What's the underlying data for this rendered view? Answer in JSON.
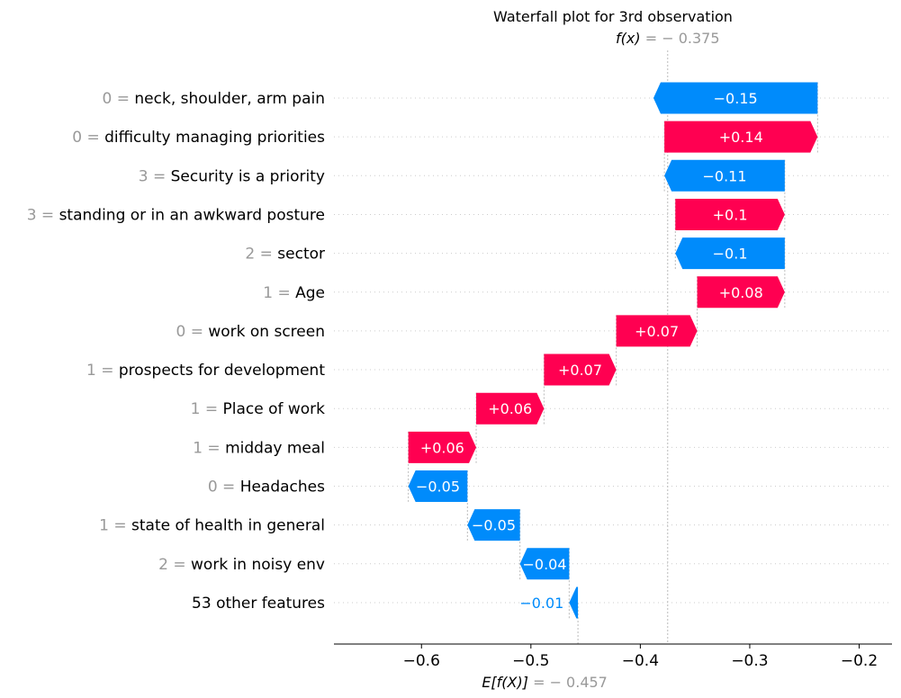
{
  "chart_data": {
    "type": "waterfall",
    "title": "Waterfall plot for 3rd observation",
    "fx_prefix": "f(x)",
    "fx_text": " = − 0.375",
    "fx": -0.375,
    "efx_prefix": "E[f(X)]",
    "efx_text": " = − 0.457",
    "efx": -0.457,
    "xlim": [
      -0.68,
      -0.17
    ],
    "xticks": [
      -0.6,
      -0.5,
      -0.4,
      -0.3,
      -0.2
    ],
    "xtick_labels": [
      "−0.6",
      "−0.5",
      "−0.4",
      "−0.3",
      "−0.2"
    ],
    "features": [
      {
        "value": "0",
        "name": "neck, shoulder, arm pain",
        "shap": -0.15,
        "label": "−0.15"
      },
      {
        "value": "0",
        "name": "difficulty managing priorities",
        "shap": 0.14,
        "label": "+0.14"
      },
      {
        "value": "3",
        "name": "Security is a priority",
        "shap": -0.11,
        "label": "−0.11"
      },
      {
        "value": "3",
        "name": "standing or in an awkward posture",
        "shap": 0.1,
        "label": "+0.1"
      },
      {
        "value": "2",
        "name": "sector",
        "shap": -0.1,
        "label": "−0.1"
      },
      {
        "value": "1",
        "name": "Age",
        "shap": 0.08,
        "label": "+0.08"
      },
      {
        "value": "0",
        "name": "work on screen",
        "shap": 0.074,
        "label": "+0.07"
      },
      {
        "value": "1",
        "name": "prospects for development",
        "shap": 0.066,
        "label": "+0.07"
      },
      {
        "value": "1",
        "name": "Place of work",
        "shap": 0.062,
        "label": "+0.06"
      },
      {
        "value": "1",
        "name": "midday meal",
        "shap": 0.062,
        "label": "+0.06"
      },
      {
        "value": "0",
        "name": "Headaches",
        "shap": -0.054,
        "label": "−0.05"
      },
      {
        "value": "1",
        "name": "state of health in general",
        "shap": -0.048,
        "label": "−0.05"
      },
      {
        "value": "2",
        "name": "work in noisy env",
        "shap": -0.045,
        "label": "−0.04"
      },
      {
        "value": "",
        "name": "53 other features",
        "shap": -0.008,
        "label": "−0.01"
      }
    ],
    "colors": {
      "positive": "#ff0051",
      "negative": "#008bfb",
      "muted": "#999999"
    },
    "grid": false
  }
}
